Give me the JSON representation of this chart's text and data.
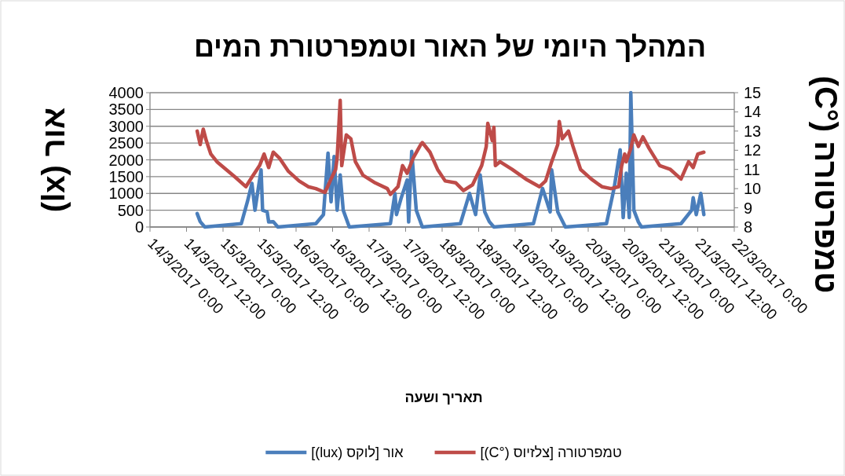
{
  "chart_data": {
    "type": "line",
    "title": "המהלך היומי של האור וטמפרטורת המים",
    "xlabel": "תאריך ושעה",
    "ylabel": "אור (lx)",
    "y2label": "טמפרטורה (°C)",
    "xlim": [
      "2017-03-14T00:00",
      "2017-03-22T00:00"
    ],
    "xticks": [
      {
        "value": "2017-03-14T00:00",
        "label": "14/3/2017 0:00"
      },
      {
        "value": "2017-03-14T12:00",
        "label": "14/3/2017 12:00"
      },
      {
        "value": "2017-03-15T00:00",
        "label": "15/3/2017 0:00"
      },
      {
        "value": "2017-03-15T12:00",
        "label": "15/3/2017 12:00"
      },
      {
        "value": "2017-03-16T00:00",
        "label": "16/3/2017 0:00"
      },
      {
        "value": "2017-03-16T12:00",
        "label": "16/3/2017 12:00"
      },
      {
        "value": "2017-03-17T00:00",
        "label": "17/3/2017 0:00"
      },
      {
        "value": "2017-03-17T12:00",
        "label": "17/3/2017 12:00"
      },
      {
        "value": "2017-03-18T00:00",
        "label": "18/3/2017 0:00"
      },
      {
        "value": "2017-03-18T12:00",
        "label": "18/3/2017 12:00"
      },
      {
        "value": "2017-03-19T00:00",
        "label": "19/3/2017 0:00"
      },
      {
        "value": "2017-03-19T12:00",
        "label": "19/3/2017 12:00"
      },
      {
        "value": "2017-03-20T00:00",
        "label": "20/3/2017 0:00"
      },
      {
        "value": "2017-03-20T12:00",
        "label": "20/3/2017 12:00"
      },
      {
        "value": "2017-03-21T00:00",
        "label": "21/3/2017 0:00"
      },
      {
        "value": "2017-03-21T12:00",
        "label": "21/3/2017 12:00"
      },
      {
        "value": "2017-03-22T00:00",
        "label": "22/3/2017 0:00"
      }
    ],
    "ylim": [
      0,
      4000
    ],
    "yticks": [
      0,
      500,
      1000,
      1500,
      2000,
      2500,
      3000,
      3500,
      4000
    ],
    "y2lim": [
      8,
      15
    ],
    "y2ticks": [
      8,
      9,
      10,
      11,
      12,
      13,
      14,
      15
    ],
    "grid": "y",
    "legend": "bottom",
    "marker": "none",
    "line_style": "solid",
    "series": [
      {
        "name": "אור [לוקס (lux)]",
        "color": "#4a7ebb",
        "x": [
          "2017-03-14T15:30",
          "2017-03-14T16:30",
          "2017-03-14T18:00",
          "2017-03-15T06:00",
          "2017-03-15T08:00",
          "2017-03-15T09:30",
          "2017-03-15T10:30",
          "2017-03-15T12:30",
          "2017-03-15T13:00",
          "2017-03-15T14:30",
          "2017-03-15T15:00",
          "2017-03-15T16:30",
          "2017-03-15T18:00",
          "2017-03-16T06:30",
          "2017-03-16T09:00",
          "2017-03-16T10:30",
          "2017-03-16T11:30",
          "2017-03-16T12:30",
          "2017-03-16T13:30",
          "2017-03-16T14:30",
          "2017-03-16T15:30",
          "2017-03-16T17:30",
          "2017-03-17T07:00",
          "2017-03-17T08:30",
          "2017-03-17T09:00",
          "2017-03-17T10:30",
          "2017-03-17T12:30",
          "2017-03-17T13:00",
          "2017-03-17T14:00",
          "2017-03-17T15:30",
          "2017-03-17T17:30",
          "2017-03-18T06:00",
          "2017-03-18T09:00",
          "2017-03-18T11:00",
          "2017-03-18T12:30",
          "2017-03-18T14:00",
          "2017-03-18T15:30",
          "2017-03-18T17:00",
          "2017-03-19T06:00",
          "2017-03-19T09:00",
          "2017-03-19T11:30",
          "2017-03-19T12:00",
          "2017-03-19T14:00",
          "2017-03-19T16:30",
          "2017-03-20T06:00",
          "2017-03-20T08:30",
          "2017-03-20T10:30",
          "2017-03-20T11:30",
          "2017-03-20T12:30",
          "2017-03-20T13:30",
          "2017-03-20T14:00",
          "2017-03-20T15:00",
          "2017-03-20T16:30",
          "2017-03-20T17:30",
          "2017-03-21T06:30",
          "2017-03-21T10:00",
          "2017-03-21T10:30",
          "2017-03-21T11:30",
          "2017-03-21T13:00",
          "2017-03-21T14:00"
        ],
        "values": [
          400,
          160,
          0,
          100,
          750,
          1300,
          500,
          1700,
          500,
          450,
          150,
          160,
          0,
          100,
          370,
          2200,
          750,
          2100,
          500,
          1550,
          500,
          0,
          100,
          1000,
          370,
          850,
          1400,
          150,
          2250,
          500,
          0,
          100,
          1000,
          370,
          1550,
          450,
          160,
          0,
          100,
          1150,
          450,
          1700,
          450,
          0,
          100,
          1150,
          2300,
          280,
          1600,
          280,
          4000,
          500,
          150,
          0,
          100,
          500,
          870,
          370,
          1000,
          370
        ]
      },
      {
        "name": "טמפרטורה [צלזיוס (°C)]",
        "color": "#be4b48",
        "axis": "y2",
        "x": [
          "2017-03-14T15:30",
          "2017-03-14T16:30",
          "2017-03-14T17:30",
          "2017-03-14T18:30",
          "2017-03-14T20:00",
          "2017-03-14T22:00",
          "2017-03-15T01:00",
          "2017-03-15T04:00",
          "2017-03-15T07:30",
          "2017-03-15T09:30",
          "2017-03-15T12:00",
          "2017-03-15T13:30",
          "2017-03-15T15:00",
          "2017-03-15T16:30",
          "2017-03-15T18:30",
          "2017-03-15T21:30",
          "2017-03-16T01:00",
          "2017-03-16T04:00",
          "2017-03-16T06:30",
          "2017-03-16T09:30",
          "2017-03-16T11:30",
          "2017-03-16T13:00",
          "2017-03-16T13:30",
          "2017-03-16T14:30",
          "2017-03-16T15:00",
          "2017-03-16T16:30",
          "2017-03-16T18:00",
          "2017-03-16T19:30",
          "2017-03-16T22:00",
          "2017-03-17T02:00",
          "2017-03-17T06:00",
          "2017-03-17T07:00",
          "2017-03-17T09:30",
          "2017-03-17T11:00",
          "2017-03-17T12:30",
          "2017-03-17T14:30",
          "2017-03-17T17:00",
          "2017-03-17T17:30",
          "2017-03-17T20:00",
          "2017-03-17T22:30",
          "2017-03-18T01:00",
          "2017-03-18T04:30",
          "2017-03-18T07:00",
          "2017-03-18T10:00",
          "2017-03-18T13:00",
          "2017-03-18T14:30",
          "2017-03-18T15:00",
          "2017-03-18T16:30",
          "2017-03-18T17:00",
          "2017-03-18T17:30",
          "2017-03-18T19:00",
          "2017-03-18T23:00",
          "2017-03-19T03:30",
          "2017-03-19T08:00",
          "2017-03-19T10:00",
          "2017-03-19T12:00",
          "2017-03-19T14:00",
          "2017-03-19T14:30",
          "2017-03-19T15:30",
          "2017-03-19T17:30",
          "2017-03-19T19:00",
          "2017-03-19T21:30",
          "2017-03-20T01:00",
          "2017-03-20T04:30",
          "2017-03-20T07:30",
          "2017-03-20T10:00",
          "2017-03-20T11:00",
          "2017-03-20T12:00",
          "2017-03-20T12:30",
          "2017-03-20T14:00",
          "2017-03-20T15:00",
          "2017-03-20T16:30",
          "2017-03-20T18:00",
          "2017-03-20T20:00",
          "2017-03-20T23:30",
          "2017-03-21T03:00",
          "2017-03-21T06:30",
          "2017-03-21T09:00",
          "2017-03-21T10:30",
          "2017-03-21T12:00",
          "2017-03-21T14:00"
        ],
        "values": [
          13.0,
          12.3,
          13.1,
          12.5,
          11.8,
          11.4,
          11.0,
          10.6,
          10.1,
          10.6,
          11.2,
          11.8,
          11.1,
          11.9,
          11.6,
          10.9,
          10.4,
          10.1,
          10.0,
          9.8,
          10.5,
          11.0,
          11.6,
          14.6,
          11.2,
          12.8,
          12.6,
          11.4,
          10.7,
          10.3,
          10.0,
          9.7,
          10.1,
          11.2,
          10.8,
          11.6,
          12.3,
          12.4,
          11.9,
          11.0,
          10.4,
          10.3,
          9.9,
          10.2,
          11.2,
          12.2,
          13.4,
          12.5,
          13.2,
          11.2,
          11.4,
          11.0,
          10.5,
          10.1,
          10.4,
          11.4,
          12.3,
          13.5,
          12.6,
          13.0,
          12.2,
          11.0,
          10.5,
          10.1,
          10.0,
          10.1,
          11.2,
          11.8,
          11.4,
          12.1,
          12.8,
          12.2,
          12.7,
          12.1,
          11.2,
          11.0,
          10.5,
          11.4,
          11.1,
          11.8,
          11.9
        ]
      }
    ]
  }
}
